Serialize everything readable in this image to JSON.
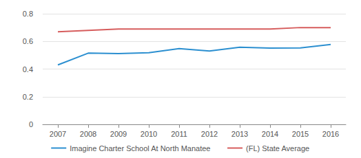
{
  "chart_data": {
    "type": "line",
    "categories": [
      "2007",
      "2008",
      "2009",
      "2010",
      "2011",
      "2012",
      "2013",
      "2014",
      "2015",
      "2016"
    ],
    "series": [
      {
        "name": "Imagine Charter School At North Manatee",
        "color": "#2b8fd0",
        "values": [
          0.43,
          0.515,
          0.512,
          0.518,
          0.548,
          0.53,
          0.558,
          0.552,
          0.553,
          0.578
        ]
      },
      {
        "name": "(FL) State Average",
        "color": "#d65c5c",
        "values": [
          0.67,
          0.68,
          0.69,
          0.69,
          0.69,
          0.69,
          0.69,
          0.69,
          0.7,
          0.7
        ]
      }
    ],
    "ylim": [
      0,
      0.8
    ],
    "yticks": [
      0,
      0.2,
      0.4,
      0.6,
      0.8
    ],
    "grid": true,
    "legend": "bottom"
  }
}
